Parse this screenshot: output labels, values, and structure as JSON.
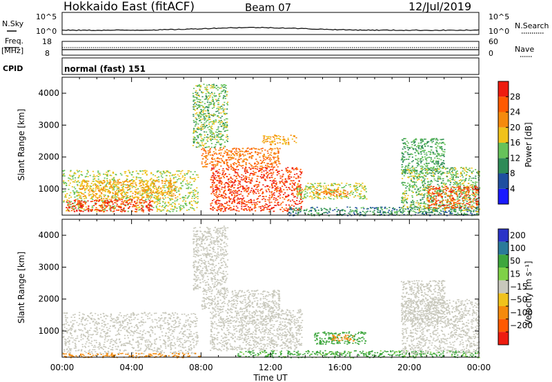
{
  "header": {
    "title": "Hokkaido East (fitACF)",
    "beam": "Beam 07",
    "date": "12/Jul/2019"
  },
  "nsky": {
    "label": "N.Sky",
    "top_tick": "10^5",
    "bottom_tick": "10^0",
    "right_top_tick": "10^5",
    "right_bottom_tick": "10^0",
    "right_label": "N.Search"
  },
  "freq": {
    "label_line1": "Freq.",
    "label_line2": "[MHz]",
    "top_tick": "18",
    "bottom_tick": "8",
    "right_top_tick": "60",
    "right_bottom_tick": "0",
    "right_label": "Nave"
  },
  "cpid": {
    "label": "CPID",
    "value": "normal (fast) 151"
  },
  "colors": {
    "power_scale": [
      "#1a1aff",
      "#1f4fa0",
      "#2e8b57",
      "#66c25a",
      "#f0c21b",
      "#f58a0c",
      "#ff5a00",
      "#ee1c0f"
    ],
    "velocity_scale": [
      "#ee1c0f",
      "#ff5a00",
      "#f58a0c",
      "#f0c21b",
      "#c8c8bc",
      "#7fd147",
      "#3da63d",
      "#2a7a9a",
      "#2a33c8"
    ]
  },
  "chart_data": [
    {
      "type": "heatmap",
      "name": "power",
      "ylabel": "Slant Range [km]",
      "xlabel": "",
      "x_ticks": [
        "00:00",
        "04:00",
        "08:00",
        "12:00",
        "16:00",
        "20:00",
        "00:00"
      ],
      "y_ticks": [
        "1000",
        "2000",
        "3000",
        "4000"
      ],
      "ylim": [
        180,
        4500
      ],
      "xlim_hours": [
        0,
        24
      ],
      "colorbar": {
        "label": "Power [dB]",
        "ticks": [
          "4",
          "8",
          "12",
          "16",
          "20",
          "24",
          "28"
        ],
        "range": [
          0,
          32
        ]
      },
      "regions": [
        {
          "t0": 0.0,
          "t1": 7.8,
          "r0": 300,
          "r1": 1600,
          "level": 16
        },
        {
          "t0": 0.2,
          "t1": 5.2,
          "r0": 300,
          "r1": 700,
          "level": 28
        },
        {
          "t0": 1.0,
          "t1": 6.5,
          "r0": 700,
          "r1": 1300,
          "level": 20
        },
        {
          "t0": 8.5,
          "t1": 13.8,
          "r0": 300,
          "r1": 1700,
          "level": 28
        },
        {
          "t0": 8.0,
          "t1": 12.5,
          "r0": 1700,
          "r1": 2300,
          "level": 24
        },
        {
          "t0": 7.5,
          "t1": 9.5,
          "r0": 2300,
          "r1": 4300,
          "level": 14
        },
        {
          "t0": 11.5,
          "t1": 13.5,
          "r0": 2400,
          "r1": 2700,
          "level": 20
        },
        {
          "t0": 13.5,
          "t1": 17.5,
          "r0": 700,
          "r1": 1200,
          "level": 16
        },
        {
          "t0": 14.5,
          "t1": 16.5,
          "r0": 800,
          "r1": 1000,
          "level": 24
        },
        {
          "t0": 13.0,
          "t1": 24.0,
          "r0": 180,
          "r1": 450,
          "level": 10
        },
        {
          "t0": 19.5,
          "t1": 22.0,
          "r0": 1500,
          "r1": 2600,
          "level": 12
        },
        {
          "t0": 19.5,
          "t1": 24.0,
          "r0": 300,
          "r1": 1700,
          "level": 14
        },
        {
          "t0": 21.0,
          "t1": 24.0,
          "r0": 400,
          "r1": 1100,
          "level": 26
        }
      ]
    },
    {
      "type": "heatmap",
      "name": "velocity",
      "ylabel": "Slant Range [km]",
      "xlabel": "Time UT",
      "x_ticks": [
        "00:00",
        "04:00",
        "08:00",
        "12:00",
        "16:00",
        "20:00",
        "00:00"
      ],
      "y_ticks": [
        "1000",
        "2000",
        "3000",
        "4000"
      ],
      "ylim": [
        180,
        4500
      ],
      "xlim_hours": [
        0,
        24
      ],
      "colorbar": {
        "label": "Velocity [m s⁻¹]",
        "ticks": [
          "200",
          "100",
          "50",
          "15",
          "−15",
          "−50",
          "−100",
          "−200"
        ]
      },
      "regions": [
        {
          "t0": 0.0,
          "t1": 7.8,
          "r0": 300,
          "r1": 1600,
          "level": 0
        },
        {
          "t0": 0.0,
          "t1": 8.0,
          "r0": 180,
          "r1": 320,
          "level": -60
        },
        {
          "t0": 8.5,
          "t1": 13.8,
          "r0": 400,
          "r1": 1700,
          "level": 0
        },
        {
          "t0": 8.0,
          "t1": 12.5,
          "r0": 1700,
          "r1": 2300,
          "level": 0
        },
        {
          "t0": 7.5,
          "t1": 9.5,
          "r0": 2300,
          "r1": 4300,
          "level": 0
        },
        {
          "t0": 10.0,
          "t1": 24.0,
          "r0": 180,
          "r1": 400,
          "level": 40
        },
        {
          "t0": 14.5,
          "t1": 17.5,
          "r0": 600,
          "r1": 1000,
          "level": 60
        },
        {
          "t0": 15.5,
          "t1": 16.8,
          "r0": 700,
          "r1": 900,
          "level": -60
        },
        {
          "t0": 19.5,
          "t1": 24.0,
          "r0": 300,
          "r1": 2000,
          "level": 0
        },
        {
          "t0": 19.5,
          "t1": 22.0,
          "r0": 1300,
          "r1": 2600,
          "level": 0
        }
      ]
    }
  ]
}
